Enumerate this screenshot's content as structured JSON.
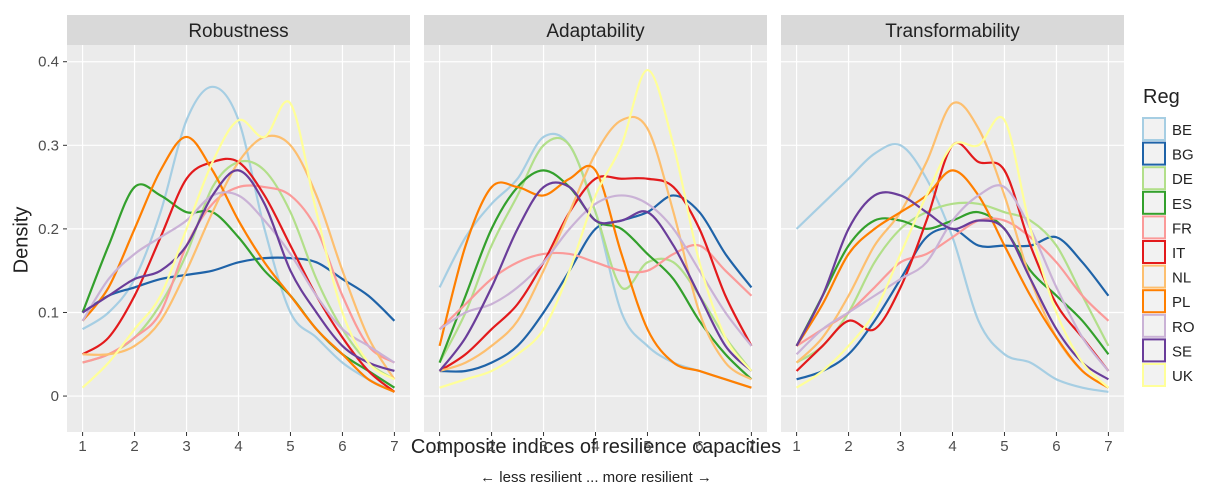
{
  "y_label": "Density",
  "x_label": "Composite indices of resilience capacities",
  "note": "← less resilient ... more resilient →",
  "legend_title": "Reg",
  "chart_data": [
    {
      "type": "line",
      "title": "Robustness",
      "x": [
        1,
        1.5,
        2,
        2.5,
        3,
        3.5,
        4,
        4.5,
        5,
        5.5,
        6,
        6.5,
        7
      ],
      "xlim": [
        0.7,
        7.3
      ],
      "ylim": [
        -0.043,
        0.42
      ],
      "xticks": [
        1,
        2,
        3,
        4,
        5,
        6,
        7
      ],
      "yticks": [
        0.0,
        0.1,
        0.2,
        0.3,
        0.4
      ],
      "grid": true,
      "series": [
        {
          "name": "BE",
          "color": "#a6cee3",
          "values": [
            0.08,
            0.1,
            0.14,
            0.22,
            0.33,
            0.37,
            0.33,
            0.2,
            0.1,
            0.07,
            0.04,
            0.02,
            0.005
          ]
        },
        {
          "name": "BG",
          "color": "#1f63a8",
          "values": [
            0.1,
            0.12,
            0.13,
            0.14,
            0.145,
            0.15,
            0.16,
            0.165,
            0.165,
            0.16,
            0.14,
            0.12,
            0.09
          ]
        },
        {
          "name": "DE",
          "color": "#b2df8a",
          "values": [
            0.04,
            0.05,
            0.07,
            0.11,
            0.17,
            0.25,
            0.28,
            0.27,
            0.22,
            0.14,
            0.08,
            0.04,
            0.02
          ]
        },
        {
          "name": "ES",
          "color": "#33a02c",
          "values": [
            0.1,
            0.18,
            0.25,
            0.24,
            0.22,
            0.22,
            0.19,
            0.15,
            0.12,
            0.08,
            0.05,
            0.03,
            0.01
          ]
        },
        {
          "name": "FR",
          "color": "#fb9a99",
          "values": [
            0.04,
            0.05,
            0.07,
            0.1,
            0.18,
            0.23,
            0.25,
            0.25,
            0.24,
            0.2,
            0.12,
            0.06,
            0.04
          ]
        },
        {
          "name": "IT",
          "color": "#e31a1c",
          "values": [
            0.05,
            0.07,
            0.12,
            0.19,
            0.26,
            0.28,
            0.28,
            0.24,
            0.18,
            0.12,
            0.07,
            0.03,
            0.005
          ]
        },
        {
          "name": "NL",
          "color": "#fdbf6f",
          "values": [
            0.05,
            0.05,
            0.06,
            0.09,
            0.15,
            0.22,
            0.28,
            0.31,
            0.3,
            0.24,
            0.15,
            0.07,
            0.02
          ]
        },
        {
          "name": "PL",
          "color": "#ff7f00",
          "values": [
            0.09,
            0.13,
            0.2,
            0.27,
            0.31,
            0.27,
            0.21,
            0.16,
            0.12,
            0.08,
            0.05,
            0.02,
            0.005
          ]
        },
        {
          "name": "RO",
          "color": "#cab2d6",
          "values": [
            0.09,
            0.14,
            0.17,
            0.19,
            0.21,
            0.24,
            0.24,
            0.21,
            0.17,
            0.12,
            0.08,
            0.06,
            0.04
          ]
        },
        {
          "name": "SE",
          "color": "#6a3d9a",
          "values": [
            0.1,
            0.12,
            0.14,
            0.15,
            0.18,
            0.24,
            0.27,
            0.23,
            0.15,
            0.1,
            0.06,
            0.04,
            0.03
          ]
        },
        {
          "name": "UK",
          "color": "#ffff99",
          "values": [
            0.01,
            0.04,
            0.08,
            0.12,
            0.2,
            0.28,
            0.33,
            0.31,
            0.35,
            0.22,
            0.1,
            0.04,
            0.02
          ]
        }
      ]
    },
    {
      "type": "line",
      "title": "Adaptability",
      "x": [
        1,
        1.5,
        2,
        2.5,
        3,
        3.5,
        4,
        4.5,
        5,
        5.5,
        6,
        6.5,
        7
      ],
      "xlim": [
        0.7,
        7.3
      ],
      "ylim": [
        -0.043,
        0.42
      ],
      "xticks": [
        1,
        2,
        3,
        4,
        5,
        6,
        7
      ],
      "yticks": [
        0.0,
        0.1,
        0.2,
        0.3,
        0.4
      ],
      "grid": true,
      "series": [
        {
          "name": "BE",
          "color": "#a6cee3",
          "values": [
            0.13,
            0.19,
            0.23,
            0.26,
            0.31,
            0.3,
            0.22,
            0.1,
            0.06,
            0.04,
            0.03,
            0.02,
            0.01
          ]
        },
        {
          "name": "BG",
          "color": "#1f63a8",
          "values": [
            0.03,
            0.03,
            0.04,
            0.06,
            0.1,
            0.15,
            0.2,
            0.21,
            0.22,
            0.24,
            0.22,
            0.17,
            0.13
          ]
        },
        {
          "name": "DE",
          "color": "#b2df8a",
          "values": [
            0.04,
            0.1,
            0.18,
            0.24,
            0.3,
            0.3,
            0.22,
            0.13,
            0.16,
            0.16,
            0.12,
            0.07,
            0.03
          ]
        },
        {
          "name": "ES",
          "color": "#33a02c",
          "values": [
            0.04,
            0.12,
            0.2,
            0.25,
            0.27,
            0.25,
            0.21,
            0.2,
            0.17,
            0.14,
            0.09,
            0.05,
            0.02
          ]
        },
        {
          "name": "FR",
          "color": "#fb9a99",
          "values": [
            0.08,
            0.11,
            0.14,
            0.16,
            0.17,
            0.17,
            0.16,
            0.15,
            0.15,
            0.17,
            0.18,
            0.15,
            0.12
          ]
        },
        {
          "name": "IT",
          "color": "#e31a1c",
          "values": [
            0.03,
            0.05,
            0.08,
            0.11,
            0.16,
            0.22,
            0.26,
            0.26,
            0.26,
            0.25,
            0.2,
            0.12,
            0.06
          ]
        },
        {
          "name": "NL",
          "color": "#fdbf6f",
          "values": [
            0.03,
            0.04,
            0.06,
            0.09,
            0.15,
            0.22,
            0.29,
            0.33,
            0.32,
            0.22,
            0.1,
            0.04,
            0.02
          ]
        },
        {
          "name": "PL",
          "color": "#ff7f00",
          "values": [
            0.06,
            0.18,
            0.25,
            0.25,
            0.24,
            0.26,
            0.27,
            0.17,
            0.08,
            0.04,
            0.03,
            0.02,
            0.01
          ]
        },
        {
          "name": "RO",
          "color": "#cab2d6",
          "values": [
            0.08,
            0.1,
            0.11,
            0.13,
            0.16,
            0.2,
            0.23,
            0.24,
            0.23,
            0.2,
            0.15,
            0.1,
            0.06
          ]
        },
        {
          "name": "SE",
          "color": "#6a3d9a",
          "values": [
            0.03,
            0.07,
            0.13,
            0.2,
            0.25,
            0.25,
            0.21,
            0.21,
            0.22,
            0.18,
            0.12,
            0.06,
            0.03
          ]
        },
        {
          "name": "UK",
          "color": "#ffff99",
          "values": [
            0.01,
            0.02,
            0.03,
            0.05,
            0.08,
            0.15,
            0.24,
            0.3,
            0.39,
            0.3,
            0.16,
            0.07,
            0.03
          ]
        }
      ]
    },
    {
      "type": "line",
      "title": "Transformability",
      "x": [
        1,
        1.5,
        2,
        2.5,
        3,
        3.5,
        4,
        4.5,
        5,
        5.5,
        6,
        6.5,
        7
      ],
      "xlim": [
        0.7,
        7.3
      ],
      "ylim": [
        -0.043,
        0.42
      ],
      "xticks": [
        1,
        2,
        3,
        4,
        5,
        6,
        7
      ],
      "yticks": [
        0.0,
        0.1,
        0.2,
        0.3,
        0.4
      ],
      "grid": true,
      "series": [
        {
          "name": "BE",
          "color": "#a6cee3",
          "values": [
            0.2,
            0.23,
            0.26,
            0.29,
            0.3,
            0.26,
            0.19,
            0.09,
            0.05,
            0.04,
            0.02,
            0.01,
            0.005
          ]
        },
        {
          "name": "BG",
          "color": "#1f63a8",
          "values": [
            0.02,
            0.03,
            0.05,
            0.09,
            0.14,
            0.19,
            0.2,
            0.18,
            0.18,
            0.18,
            0.19,
            0.16,
            0.12
          ]
        },
        {
          "name": "DE",
          "color": "#b2df8a",
          "values": [
            0.04,
            0.06,
            0.1,
            0.16,
            0.2,
            0.22,
            0.23,
            0.23,
            0.22,
            0.21,
            0.18,
            0.12,
            0.06
          ]
        },
        {
          "name": "ES",
          "color": "#33a02c",
          "values": [
            0.06,
            0.12,
            0.18,
            0.21,
            0.21,
            0.2,
            0.21,
            0.22,
            0.2,
            0.15,
            0.12,
            0.09,
            0.05
          ]
        },
        {
          "name": "FR",
          "color": "#fb9a99",
          "values": [
            0.06,
            0.08,
            0.1,
            0.13,
            0.16,
            0.17,
            0.19,
            0.21,
            0.21,
            0.19,
            0.16,
            0.12,
            0.09
          ]
        },
        {
          "name": "IT",
          "color": "#e31a1c",
          "values": [
            0.03,
            0.06,
            0.09,
            0.08,
            0.13,
            0.21,
            0.3,
            0.28,
            0.27,
            0.18,
            0.11,
            0.07,
            0.03
          ]
        },
        {
          "name": "NL",
          "color": "#fdbf6f",
          "values": [
            0.04,
            0.07,
            0.12,
            0.18,
            0.22,
            0.28,
            0.35,
            0.32,
            0.24,
            0.14,
            0.07,
            0.03,
            0.01
          ]
        },
        {
          "name": "PL",
          "color": "#ff7f00",
          "values": [
            0.06,
            0.11,
            0.17,
            0.2,
            0.22,
            0.24,
            0.27,
            0.24,
            0.18,
            0.12,
            0.07,
            0.03,
            0.01
          ]
        },
        {
          "name": "RO",
          "color": "#cab2d6",
          "values": [
            0.05,
            0.08,
            0.1,
            0.12,
            0.14,
            0.16,
            0.21,
            0.24,
            0.25,
            0.2,
            0.13,
            0.07,
            0.03
          ]
        },
        {
          "name": "SE",
          "color": "#6a3d9a",
          "values": [
            0.06,
            0.12,
            0.2,
            0.24,
            0.24,
            0.22,
            0.2,
            0.21,
            0.2,
            0.14,
            0.08,
            0.04,
            0.02
          ]
        },
        {
          "name": "UK",
          "color": "#ffff99",
          "values": [
            0.01,
            0.03,
            0.06,
            0.1,
            0.17,
            0.24,
            0.3,
            0.3,
            0.33,
            0.2,
            0.1,
            0.04,
            0.01
          ]
        }
      ]
    }
  ]
}
